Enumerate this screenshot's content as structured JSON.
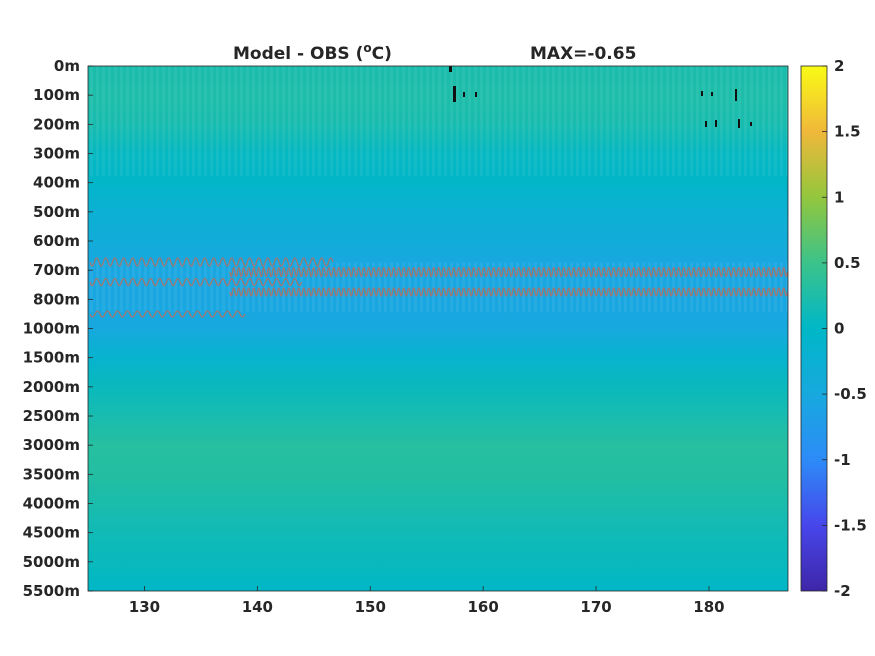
{
  "chart_data": {
    "type": "heatmap",
    "title_left": "Model - OBS (",
    "title_unit_sup": "o",
    "title_unit_tail": "C)",
    "title_right": "MAX=-0.65",
    "y_tick_labels": [
      "0m",
      "100m",
      "200m",
      "300m",
      "400m",
      "500m",
      "600m",
      "700m",
      "800m",
      "1000m",
      "1500m",
      "2000m",
      "2500m",
      "3000m",
      "3500m",
      "4000m",
      "4500m",
      "5000m",
      "5500m"
    ],
    "x_ticks": [
      130,
      140,
      150,
      160,
      170,
      180
    ],
    "x_tick_labels": [
      "130",
      "140",
      "150",
      "160",
      "170",
      "180"
    ],
    "xlim": [
      125,
      187
    ],
    "colorbar": {
      "ticks": [
        2,
        1.5,
        1,
        0.5,
        0,
        -0.5,
        -1,
        -1.5,
        -2
      ],
      "tick_labels": [
        "2",
        "1.5",
        "1",
        "0.5",
        "0",
        "-0.5",
        "-1",
        "-1.5",
        "-2"
      ],
      "range": [
        -2,
        2
      ],
      "colormap": "parula"
    },
    "depth_profile": [
      0.22,
      0.25,
      0.2,
      0.05,
      -0.05,
      -0.25,
      -0.4,
      -0.55,
      -0.55,
      -0.5,
      -0.15,
      0.08,
      0.2,
      0.32,
      0.3,
      0.22,
      0.14,
      0.08,
      0.0
    ],
    "contour_color": "#a0766e",
    "grid": false
  }
}
